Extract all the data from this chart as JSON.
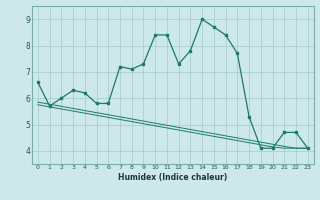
{
  "xlabel": "Humidex (Indice chaleur)",
  "background_color": "#cde8e8",
  "grid_color": "#aacfcf",
  "line_color": "#1a7a6e",
  "x_values": [
    0,
    1,
    2,
    3,
    4,
    5,
    6,
    7,
    8,
    9,
    10,
    11,
    12,
    13,
    14,
    15,
    16,
    17,
    18,
    19,
    20,
    21,
    22,
    23
  ],
  "y_main": [
    6.6,
    5.7,
    6.0,
    6.3,
    6.2,
    5.8,
    5.8,
    7.2,
    7.1,
    7.3,
    8.4,
    8.4,
    7.3,
    7.8,
    9.0,
    8.7,
    8.4,
    7.7,
    5.3,
    4.1,
    4.1,
    4.7,
    4.7,
    4.1
  ],
  "y_trend1": [
    5.85,
    5.77,
    5.69,
    5.61,
    5.53,
    5.45,
    5.37,
    5.29,
    5.21,
    5.13,
    5.05,
    4.97,
    4.89,
    4.81,
    4.73,
    4.65,
    4.57,
    4.49,
    4.41,
    4.33,
    4.25,
    4.17,
    4.1,
    4.1
  ],
  "y_trend2": [
    5.75,
    5.67,
    5.59,
    5.51,
    5.43,
    5.35,
    5.27,
    5.19,
    5.11,
    5.03,
    4.95,
    4.87,
    4.79,
    4.71,
    4.63,
    4.55,
    4.47,
    4.39,
    4.31,
    4.23,
    4.15,
    4.1,
    4.1,
    4.1
  ],
  "ylim": [
    3.5,
    9.5
  ],
  "xlim": [
    -0.5,
    23.5
  ],
  "yticks": [
    4,
    5,
    6,
    7,
    8,
    9
  ],
  "spine_color": "#7aadad"
}
